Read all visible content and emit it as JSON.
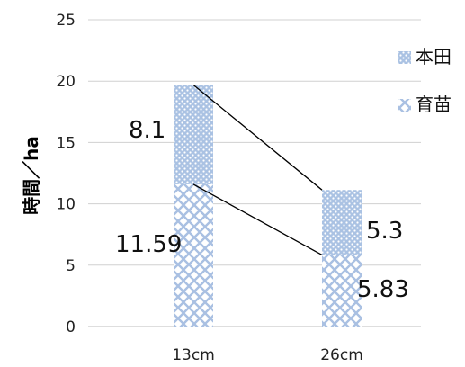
{
  "chart_data": {
    "type": "bar",
    "stacked": true,
    "categories": [
      "13cm",
      "26cm"
    ],
    "series": [
      {
        "name": "育苗",
        "values": [
          11.59,
          5.83
        ],
        "pattern": "crosshatch",
        "color": "#b7cbe6"
      },
      {
        "name": "本田",
        "values": [
          8.1,
          5.3
        ],
        "pattern": "dots",
        "color": "#9fb9dd"
      }
    ],
    "data_labels": [
      [
        "11.59",
        "5.83"
      ],
      [
        "8.1",
        "5.3"
      ]
    ],
    "title": "",
    "xlabel": "",
    "ylabel": "時間／ha",
    "ylim": [
      0,
      25
    ],
    "yticks": [
      "0",
      "5",
      "10",
      "15",
      "20",
      "25"
    ],
    "grid": true,
    "legend_position": "right",
    "series_connector_lines": true
  }
}
